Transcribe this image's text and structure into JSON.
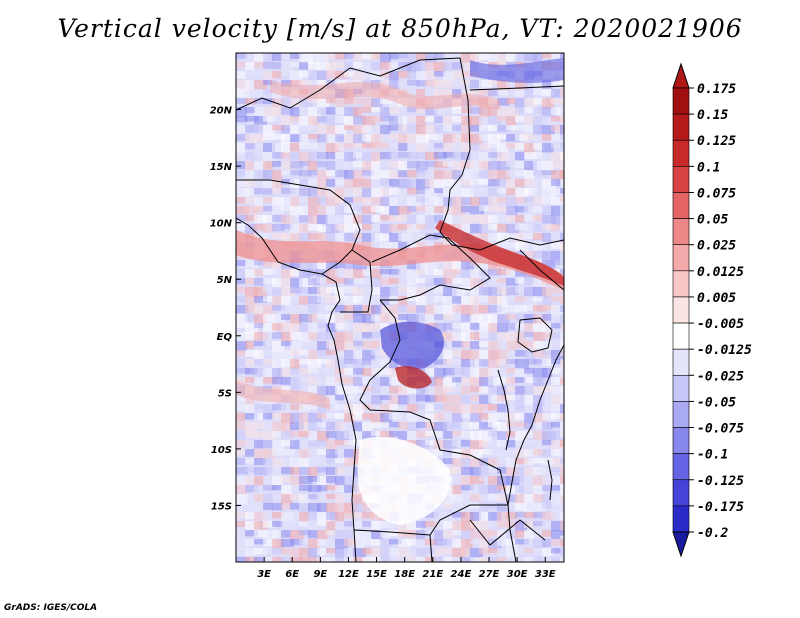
{
  "title": "Vertical velocity [m/s] at 850hPa, VT: 2020021906",
  "credit": "GrADS: IGES/COLA",
  "map": {
    "lon_range": [
      0,
      35
    ],
    "lat_range": [
      -20,
      25
    ],
    "lon_ticks": [
      {
        "value": 3,
        "label": "3E"
      },
      {
        "value": 6,
        "label": "6E"
      },
      {
        "value": 9,
        "label": "9E"
      },
      {
        "value": 12,
        "label": "12E"
      },
      {
        "value": 15,
        "label": "15E"
      },
      {
        "value": 18,
        "label": "18E"
      },
      {
        "value": 21,
        "label": "21E"
      },
      {
        "value": 24,
        "label": "24E"
      },
      {
        "value": 27,
        "label": "27E"
      },
      {
        "value": 30,
        "label": "30E"
      },
      {
        "value": 33,
        "label": "33E"
      }
    ],
    "lat_ticks": [
      {
        "value": 20,
        "label": "20N"
      },
      {
        "value": 15,
        "label": "15N"
      },
      {
        "value": 10,
        "label": "10N"
      },
      {
        "value": 5,
        "label": "5N"
      },
      {
        "value": 0,
        "label": "EQ"
      },
      {
        "value": -5,
        "label": "5S"
      },
      {
        "value": -10,
        "label": "10S"
      },
      {
        "value": -15,
        "label": "15S"
      }
    ]
  },
  "colorbar": {
    "levels": [
      {
        "label": "0.175",
        "color": "#a01010"
      },
      {
        "label": "0.15",
        "color": "#b41a1a"
      },
      {
        "label": "0.125",
        "color": "#c82a2a"
      },
      {
        "label": "0.1",
        "color": "#d84444"
      },
      {
        "label": "0.075",
        "color": "#e46464"
      },
      {
        "label": "0.05",
        "color": "#ec8888"
      },
      {
        "label": "0.025",
        "color": "#f4aaaa"
      },
      {
        "label": "0.0125",
        "color": "#f8c8c8"
      },
      {
        "label": "0.005",
        "color": "#fce4e4"
      },
      {
        "label": "-0.005",
        "color": "#ffffff"
      },
      {
        "label": "-0.0125",
        "color": "#e4e4fc"
      },
      {
        "label": "-0.025",
        "color": "#c8c8f8"
      },
      {
        "label": "-0.05",
        "color": "#aaaaf4"
      },
      {
        "label": "-0.075",
        "color": "#8888ec"
      },
      {
        "label": "-0.1",
        "color": "#6464e4"
      },
      {
        "label": "-0.125",
        "color": "#4444d8"
      },
      {
        "label": "-0.175",
        "color": "#2a2ac8"
      },
      {
        "label": "-0.2",
        "color": "#1a1ab4"
      }
    ],
    "top_color": "#b01818",
    "bottom_color": "#1a1aa0"
  }
}
